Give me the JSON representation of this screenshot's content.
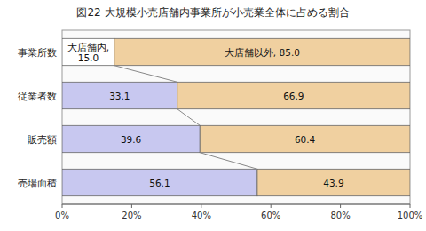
{
  "chart_data": {
    "type": "bar",
    "orientation": "horizontal",
    "stacked": true,
    "data_labels": true,
    "title": "図22  大規模小売店舗内事業所が小売業全体に占める割合",
    "categories": [
      "事業所数",
      "従業者数",
      "販売額",
      "売場面積"
    ],
    "series": [
      {
        "colors": [
          "#ffffff",
          "#c8c8f0",
          "#c8c8f0",
          "#c8c8f0"
        ],
        "values": [
          15.0,
          33.1,
          39.6,
          56.1
        ],
        "value_labels": [
          "大店舗内,\n15.0",
          "33.1",
          "39.6",
          "56.1"
        ]
      },
      {
        "color": "#f0d0a0",
        "values": [
          85.0,
          66.9,
          60.4,
          43.9
        ],
        "value_labels": [
          "大店舗以外, 85.0",
          "66.9",
          "60.4",
          "43.9"
        ]
      }
    ],
    "xlim": [
      0,
      100
    ],
    "xticks": [
      {
        "value": 0,
        "label": "0%"
      },
      {
        "value": 20,
        "label": "20%"
      },
      {
        "value": 40,
        "label": "40%"
      },
      {
        "value": 60,
        "label": "60%"
      },
      {
        "value": 80,
        "label": "80%"
      },
      {
        "value": 100,
        "label": "100%"
      }
    ]
  }
}
